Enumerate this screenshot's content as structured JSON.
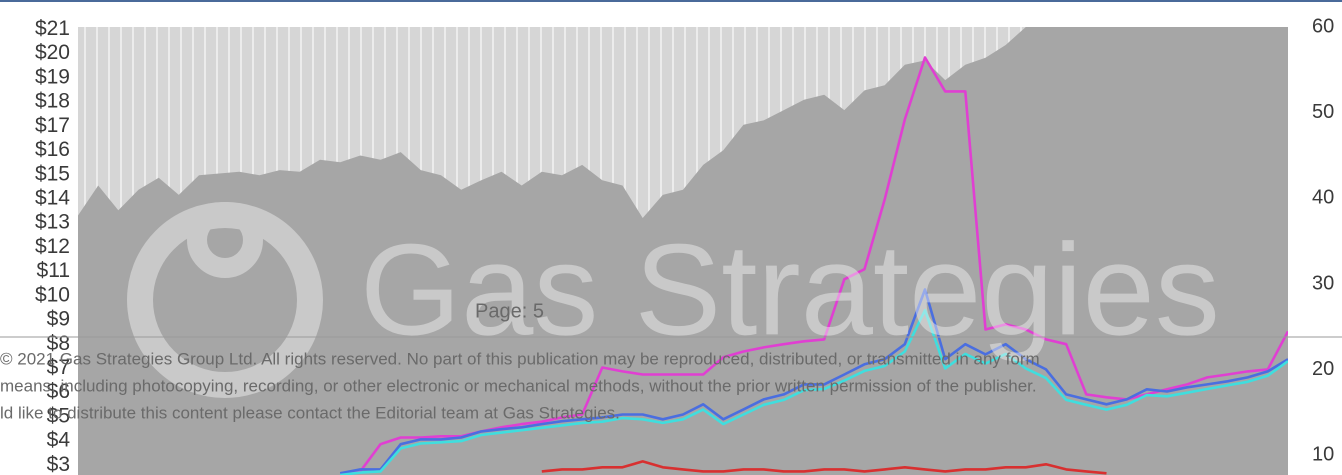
{
  "chart_data": {
    "type": "line",
    "ylim": [
      2.6,
      21.1
    ],
    "yticks": [
      {
        "value": 21,
        "label": "$21"
      },
      {
        "value": 20,
        "label": "$20"
      },
      {
        "value": 19,
        "label": "$19"
      },
      {
        "value": 18,
        "label": "$18"
      },
      {
        "value": 17,
        "label": "$17"
      },
      {
        "value": 16,
        "label": "$16"
      },
      {
        "value": 15,
        "label": "$15"
      },
      {
        "value": 14,
        "label": "$14"
      },
      {
        "value": 13,
        "label": "$13"
      },
      {
        "value": 12,
        "label": "$12"
      },
      {
        "value": 11,
        "label": "$11"
      },
      {
        "value": 10,
        "label": "$10"
      },
      {
        "value": 9,
        "label": "$9"
      },
      {
        "value": 8,
        "label": "$8"
      },
      {
        "value": 7,
        "label": "$7"
      },
      {
        "value": 6,
        "label": "$6"
      },
      {
        "value": 5,
        "label": "$5"
      },
      {
        "value": 4,
        "label": "$4"
      },
      {
        "value": 3,
        "label": "$3"
      }
    ],
    "y2lim": [
      7.7,
      60
    ],
    "y2ticks": [
      60,
      50,
      40,
      30,
      20,
      10
    ],
    "series": [
      {
        "color": "#a6a6a6",
        "axis": "y2",
        "fill": true,
        "values": [
          38.0,
          41.5,
          38.6,
          41.0,
          42.4,
          40.4,
          42.7,
          42.9,
          43.1,
          42.7,
          43.3,
          43.1,
          44.5,
          44.2,
          45.0,
          44.5,
          45.4,
          43.3,
          42.7,
          41.0,
          42.1,
          43.1,
          41.5,
          43.1,
          42.7,
          43.9,
          42.1,
          41.5,
          37.7,
          40.4,
          41.0,
          43.9,
          45.6,
          48.6,
          49.1,
          50.3,
          51.5,
          52.1,
          50.3,
          52.6,
          53.2,
          55.6,
          56.1,
          53.8,
          55.6,
          56.4,
          57.9,
          60,
          60,
          60,
          60,
          60,
          60,
          60,
          60,
          60,
          60,
          60,
          60,
          60,
          60
        ]
      },
      {
        "color": "#e03fd2",
        "values": [
          null,
          null,
          null,
          null,
          null,
          null,
          null,
          null,
          null,
          null,
          null,
          null,
          null,
          2.67,
          2.75,
          3.87,
          4.15,
          4.15,
          4.2,
          4.2,
          4.4,
          4.57,
          4.7,
          4.8,
          4.98,
          5.1,
          7.04,
          6.88,
          6.75,
          6.75,
          6.75,
          6.75,
          7.46,
          7.7,
          7.87,
          8.0,
          8.12,
          8.2,
          10.68,
          11.1,
          13.98,
          17.28,
          19.84,
          18.44,
          18.44,
          8.61,
          8.82,
          8.61,
          8.2,
          8.0,
          5.93,
          5.81,
          5.72,
          5.93,
          6.14,
          6.34,
          6.63,
          6.75,
          6.88,
          6.96,
          8.53
        ]
      },
      {
        "color": "#4a6ee0",
        "values": [
          null,
          null,
          null,
          null,
          null,
          null,
          null,
          null,
          null,
          null,
          null,
          null,
          null,
          2.67,
          2.83,
          2.83,
          3.87,
          4.07,
          4.07,
          4.15,
          4.4,
          4.49,
          4.57,
          4.7,
          4.82,
          4.9,
          4.98,
          5.1,
          5.1,
          4.9,
          5.1,
          5.52,
          4.9,
          5.31,
          5.72,
          5.93,
          6.34,
          6.34,
          6.75,
          7.17,
          7.38,
          8.0,
          10.26,
          7.38,
          8.0,
          7.58,
          8.0,
          7.38,
          6.96,
          5.93,
          5.72,
          5.52,
          5.72,
          6.14,
          6.05,
          6.22,
          6.34,
          6.47,
          6.63,
          6.88,
          7.38
        ]
      },
      {
        "color": "#3fdede",
        "values": [
          null,
          null,
          null,
          null,
          null,
          null,
          null,
          null,
          null,
          null,
          null,
          null,
          null,
          2.6,
          2.7,
          2.75,
          3.7,
          3.9,
          3.95,
          4.0,
          4.25,
          4.35,
          4.45,
          4.55,
          4.65,
          4.75,
          4.8,
          4.95,
          4.9,
          4.75,
          4.9,
          5.3,
          4.7,
          5.1,
          5.5,
          5.7,
          6.1,
          6.15,
          6.5,
          6.9,
          7.1,
          7.7,
          9.4,
          7.0,
          7.6,
          7.2,
          7.6,
          7.0,
          6.6,
          5.7,
          5.5,
          5.3,
          5.5,
          5.9,
          5.85,
          6.0,
          6.15,
          6.3,
          6.45,
          6.7,
          7.3
        ]
      },
      {
        "color": "#d83030",
        "values": [
          null,
          null,
          null,
          null,
          null,
          null,
          null,
          null,
          null,
          null,
          null,
          null,
          null,
          null,
          null,
          null,
          null,
          null,
          null,
          null,
          null,
          null,
          null,
          2.75,
          2.83,
          2.83,
          2.92,
          2.92,
          3.16,
          2.92,
          2.83,
          2.75,
          2.75,
          2.83,
          2.83,
          2.75,
          2.75,
          2.83,
          2.83,
          2.75,
          2.83,
          2.92,
          2.83,
          2.75,
          2.83,
          2.83,
          2.92,
          2.92,
          3.04,
          2.83,
          2.75,
          2.67,
          null,
          null,
          null,
          null,
          null,
          null,
          null,
          null,
          null
        ]
      }
    ]
  },
  "watermark": "Gas Strategies",
  "footer": {
    "page": "Page: 5",
    "lines": [
      "© 2021 Gas Strategies Group Ltd. All rights reserved. No part of this publication may be reproduced, distributed, or transmitted in any form",
      "means, including photocopying, recording, or other electronic or mechanical methods, without the prior written permission of the publisher.",
      "ld like to distribute this content please contact the Editorial team at Gas Strategies."
    ]
  }
}
